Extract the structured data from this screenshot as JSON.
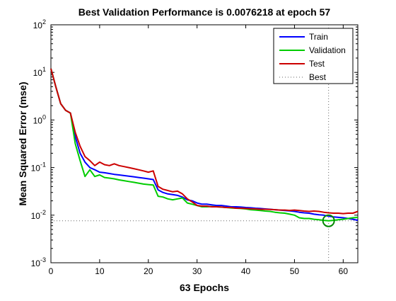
{
  "chart_data": {
    "type": "line",
    "title": "Best Validation Performance is 0.0076218 at epoch 57",
    "xlabel": "63 Epochs",
    "ylabel": "Mean Squared Error  (mse)",
    "xlim": [
      0,
      63
    ],
    "ylim": [
      0.001,
      100
    ],
    "yscale": "log",
    "xticks": [
      0,
      10,
      20,
      30,
      40,
      50,
      60
    ],
    "yticks": [
      {
        "value": 0.001,
        "base": "10",
        "exp": "-3"
      },
      {
        "value": 0.01,
        "base": "10",
        "exp": "-2"
      },
      {
        "value": 0.1,
        "base": "10",
        "exp": "-1"
      },
      {
        "value": 1,
        "base": "10",
        "exp": "0"
      },
      {
        "value": 10,
        "base": "10",
        "exp": "1"
      },
      {
        "value": 100,
        "base": "10",
        "exp": "2"
      }
    ],
    "grid": false,
    "legend_position": "top-right",
    "x": [
      0,
      1,
      2,
      3,
      4,
      5,
      6,
      7,
      8,
      9,
      10,
      11,
      12,
      13,
      14,
      15,
      16,
      17,
      18,
      19,
      20,
      21,
      22,
      23,
      24,
      25,
      26,
      27,
      28,
      29,
      30,
      31,
      32,
      33,
      34,
      35,
      36,
      37,
      38,
      39,
      40,
      41,
      42,
      43,
      44,
      45,
      46,
      47,
      48,
      49,
      50,
      51,
      52,
      53,
      54,
      55,
      56,
      57,
      58,
      59,
      60,
      61,
      62,
      63
    ],
    "series": [
      {
        "name": "Train",
        "color": "#0000ff",
        "values": [
          12,
          5,
          2.2,
          1.6,
          1.4,
          0.45,
          0.2,
          0.13,
          0.1,
          0.09,
          0.08,
          0.078,
          0.075,
          0.072,
          0.07,
          0.068,
          0.066,
          0.064,
          0.062,
          0.06,
          0.058,
          0.056,
          0.034,
          0.03,
          0.028,
          0.027,
          0.026,
          0.024,
          0.021,
          0.02,
          0.018,
          0.017,
          0.017,
          0.0165,
          0.016,
          0.016,
          0.0155,
          0.015,
          0.015,
          0.0148,
          0.0145,
          0.0143,
          0.014,
          0.0138,
          0.0135,
          0.0133,
          0.013,
          0.0128,
          0.0125,
          0.0123,
          0.012,
          0.0115,
          0.0112,
          0.011,
          0.0105,
          0.0102,
          0.01,
          0.0095,
          0.0092,
          0.009,
          0.0088,
          0.0085,
          0.0082,
          0.0078
        ]
      },
      {
        "name": "Validation",
        "color": "#00cc00",
        "values": [
          12,
          5,
          2.2,
          1.6,
          1.4,
          0.32,
          0.14,
          0.065,
          0.09,
          0.065,
          0.07,
          0.062,
          0.06,
          0.058,
          0.055,
          0.053,
          0.051,
          0.049,
          0.047,
          0.045,
          0.044,
          0.043,
          0.025,
          0.024,
          0.022,
          0.021,
          0.022,
          0.023,
          0.018,
          0.017,
          0.016,
          0.015,
          0.015,
          0.0152,
          0.015,
          0.0148,
          0.0145,
          0.0142,
          0.014,
          0.0138,
          0.0135,
          0.013,
          0.0128,
          0.0125,
          0.0122,
          0.012,
          0.0115,
          0.0112,
          0.011,
          0.0105,
          0.01,
          0.0088,
          0.0085,
          0.0085,
          0.0082,
          0.008,
          0.0078,
          0.0076218,
          0.0078,
          0.008,
          0.0082,
          0.0085,
          0.0088,
          0.009
        ]
      },
      {
        "name": "Test",
        "color": "#cc0000",
        "values": [
          12,
          5,
          2.2,
          1.6,
          1.4,
          0.55,
          0.28,
          0.17,
          0.14,
          0.11,
          0.13,
          0.115,
          0.11,
          0.12,
          0.11,
          0.105,
          0.1,
          0.095,
          0.09,
          0.085,
          0.08,
          0.085,
          0.04,
          0.035,
          0.033,
          0.031,
          0.032,
          0.028,
          0.022,
          0.019,
          0.016,
          0.0155,
          0.0155,
          0.015,
          0.015,
          0.0148,
          0.0145,
          0.0145,
          0.014,
          0.014,
          0.0138,
          0.0136,
          0.0135,
          0.0133,
          0.0133,
          0.0132,
          0.013,
          0.0128,
          0.0128,
          0.0126,
          0.0128,
          0.0125,
          0.0122,
          0.012,
          0.0122,
          0.012,
          0.0115,
          0.0112,
          0.011,
          0.011,
          0.0108,
          0.011,
          0.011,
          0.012
        ]
      },
      {
        "name": "Best",
        "color": "#666666"
      }
    ],
    "best": {
      "epoch": 57,
      "value": 0.0076218,
      "marker_color": "#008800"
    }
  }
}
